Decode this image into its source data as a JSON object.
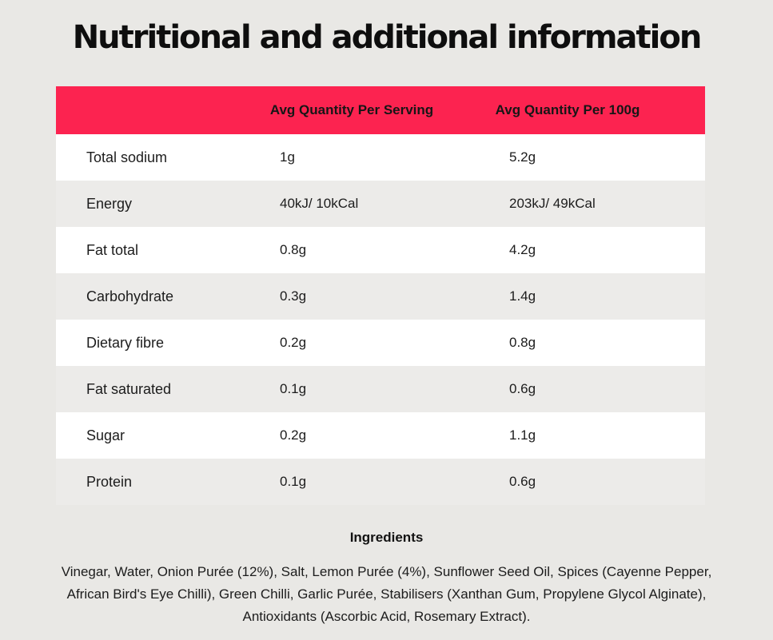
{
  "page": {
    "title": "Nutritional and additional information",
    "colors": {
      "accent": "#fc2350",
      "background": "#e9e8e5",
      "row_alt": "#ecebe9",
      "row_white": "#ffffff",
      "text": "#1c1c1c"
    }
  },
  "table": {
    "header": {
      "serving": "Avg Quantity Per Serving",
      "per_100g": "Avg Quantity Per 100g"
    },
    "rows": [
      {
        "label": "Total sodium",
        "serving": "1g",
        "per_100g": "5.2g"
      },
      {
        "label": "Energy",
        "serving": "40kJ/ 10kCal",
        "per_100g": "203kJ/ 49kCal"
      },
      {
        "label": "Fat total",
        "serving": "0.8g",
        "per_100g": "4.2g"
      },
      {
        "label": "Carbohydrate",
        "serving": "0.3g",
        "per_100g": "1.4g"
      },
      {
        "label": "Dietary fibre",
        "serving": "0.2g",
        "per_100g": "0.8g"
      },
      {
        "label": "Fat saturated",
        "serving": "0.1g",
        "per_100g": "0.6g"
      },
      {
        "label": "Sugar",
        "serving": "0.2g",
        "per_100g": "1.1g"
      },
      {
        "label": "Protein",
        "serving": "0.1g",
        "per_100g": "0.6g"
      }
    ]
  },
  "ingredients": {
    "heading": "Ingredients",
    "text": "Vinegar, Water, Onion Purée (12%), Salt, Lemon Purée (4%), Sunflower Seed Oil, Spices (Cayenne Pepper, African Bird's Eye Chilli), Green Chilli, Garlic Purée, Stabilisers (Xanthan Gum, Propylene Glycol Alginate), Antioxidants (Ascorbic Acid, Rosemary Extract)."
  }
}
